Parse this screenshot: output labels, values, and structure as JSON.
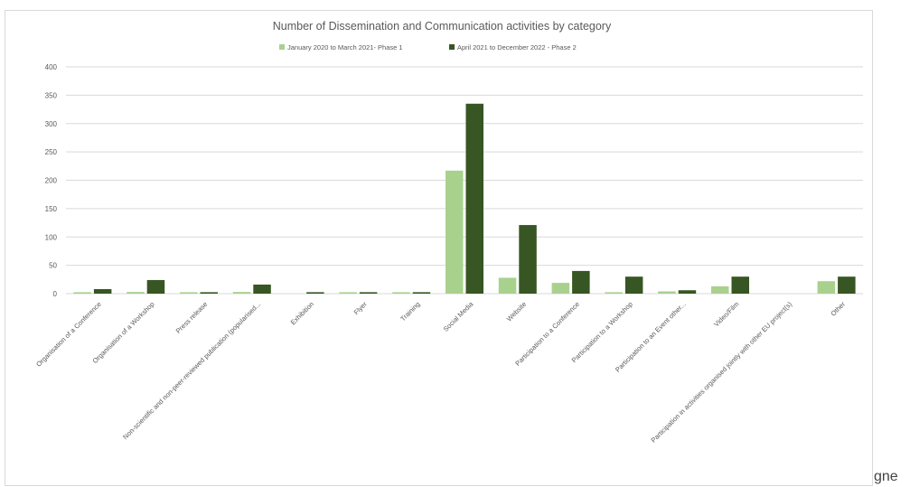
{
  "chart_data": {
    "type": "bar",
    "title": "Number of Dissemination and Communication activities by category",
    "categories": [
      "Organisation of a Conference",
      "Organisation of a Workshop",
      "Press release",
      "Non-scientific and non-peer-reviewed publication (popularised...",
      "Exhibition",
      "Flyer",
      "Training",
      "Social Media",
      "Website",
      "Participation to a Conference",
      "Participation to a Workshop",
      "Participation to an Event other...",
      "Video/Film",
      "Participation in activities organised jointly with other EU project(s)",
      "Other"
    ],
    "series": [
      {
        "name": "January 2020 to March 2021- Phase 1",
        "color": "#a9d18e",
        "values": [
          2,
          3,
          2,
          3,
          0,
          1,
          2,
          217,
          28,
          19,
          1,
          4,
          13,
          0,
          22
        ]
      },
      {
        "name": "April 2021 to December 2022 - Phase 2",
        "color": "#375623",
        "values": [
          8,
          24,
          2,
          16,
          2,
          2,
          2,
          335,
          121,
          40,
          30,
          6,
          30,
          0,
          30
        ]
      }
    ],
    "yticks": [
      0,
      50,
      100,
      150,
      200,
      250,
      300,
      350,
      400
    ],
    "ylim": [
      0,
      400
    ],
    "grid": true,
    "legend_position": "top"
  },
  "trailing_text": "gne"
}
